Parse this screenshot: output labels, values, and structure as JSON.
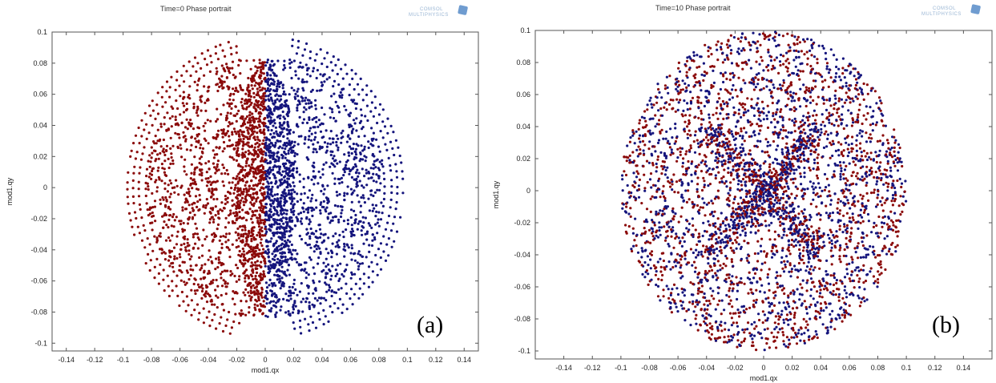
{
  "colors": {
    "series_left": "#8b0a0a",
    "series_right": "#15157d",
    "frame": "#555555",
    "logo": "#6f9cd0"
  },
  "logo": {
    "text_top": "COMSOL",
    "text_bottom": "MULTIPHYSICS",
    "icon": "comsol-cube-icon"
  },
  "chart_data": [
    {
      "type": "scatter",
      "title": "Time=0  Phase portrait",
      "xlabel": "mod1.qx",
      "ylabel": "mod1.qy",
      "panel_tag": "(a)",
      "xlim": [
        -0.15,
        0.15
      ],
      "ylim": [
        -0.105,
        0.1
      ],
      "xticks": [
        -0.14,
        -0.12,
        -0.1,
        -0.08,
        -0.06,
        -0.04,
        -0.02,
        0,
        0.02,
        0.04,
        0.06,
        0.08,
        0.1,
        0.12,
        0.14
      ],
      "yticks": [
        -0.1,
        -0.08,
        -0.06,
        -0.04,
        -0.02,
        0,
        0.02,
        0.04,
        0.06,
        0.08,
        0.1
      ],
      "xtick_labels": [
        "-0.14",
        "-0.12",
        "-0.1",
        "-0.08",
        "-0.06",
        "-0.04",
        "-0.02",
        "0",
        "0.02",
        "0.04",
        "0.06",
        "0.08",
        "0.1",
        "0.12",
        "0.14"
      ],
      "ytick_labels": [
        "-0.1",
        "-0.08",
        "-0.06",
        "-0.04",
        "-0.02",
        "0",
        "0.02",
        "0.04",
        "0.06",
        "0.08",
        "0.1"
      ],
      "grid": false,
      "legend": "none",
      "distribution": {
        "shape": "disk",
        "center": [
          0,
          0
        ],
        "radius": 0.097,
        "split": "left half red (qx < 0), right half blue (qx > 0)",
        "outer_rings": [
          0.084,
          0.089,
          0.093,
          0.097
        ],
        "dense_core_near": 0
      },
      "series": [
        {
          "color": "#8b0a0a",
          "points_approx": 3500
        },
        {
          "color": "#15157d",
          "points_approx": 3500
        }
      ]
    },
    {
      "type": "scatter",
      "title": "Time=10  Phase portrait",
      "xlabel": "mod1.qx",
      "ylabel": "mod1.qy",
      "panel_tag": "(b)",
      "xlim": [
        -0.16,
        0.16
      ],
      "ylim": [
        -0.105,
        0.1
      ],
      "xticks": [
        -0.14,
        -0.12,
        -0.1,
        -0.08,
        -0.06,
        -0.04,
        -0.02,
        0,
        0.02,
        0.04,
        0.06,
        0.08,
        0.1,
        0.12,
        0.14
      ],
      "yticks": [
        -0.1,
        -0.08,
        -0.06,
        -0.04,
        -0.02,
        0,
        0.02,
        0.04,
        0.06,
        0.08,
        0.1
      ],
      "xtick_labels": [
        "-0.14",
        "-0.12",
        "-0.1",
        "-0.08",
        "-0.06",
        "-0.04",
        "-0.02",
        "0",
        "0.02",
        "0.04",
        "0.06",
        "0.08",
        "0.1",
        "0.12",
        "0.14"
      ],
      "ytick_labels": [
        "-0.1",
        "-0.08",
        "-0.06",
        "-0.04",
        "-0.02",
        "0",
        "0.02",
        "0.04",
        "0.06",
        "0.08",
        "0.1"
      ],
      "grid": false,
      "legend": "none",
      "distribution": {
        "shape": "disk",
        "center": [
          0,
          0
        ],
        "radius": 0.1,
        "split": "red and blue fully mixed",
        "x_pattern_diagonals": true,
        "diagonal_half_length": 0.055,
        "dense_core_near": 0
      },
      "series": [
        {
          "color": "#8b0a0a",
          "points_approx": 3500
        },
        {
          "color": "#15157d",
          "points_approx": 3500
        }
      ]
    }
  ]
}
